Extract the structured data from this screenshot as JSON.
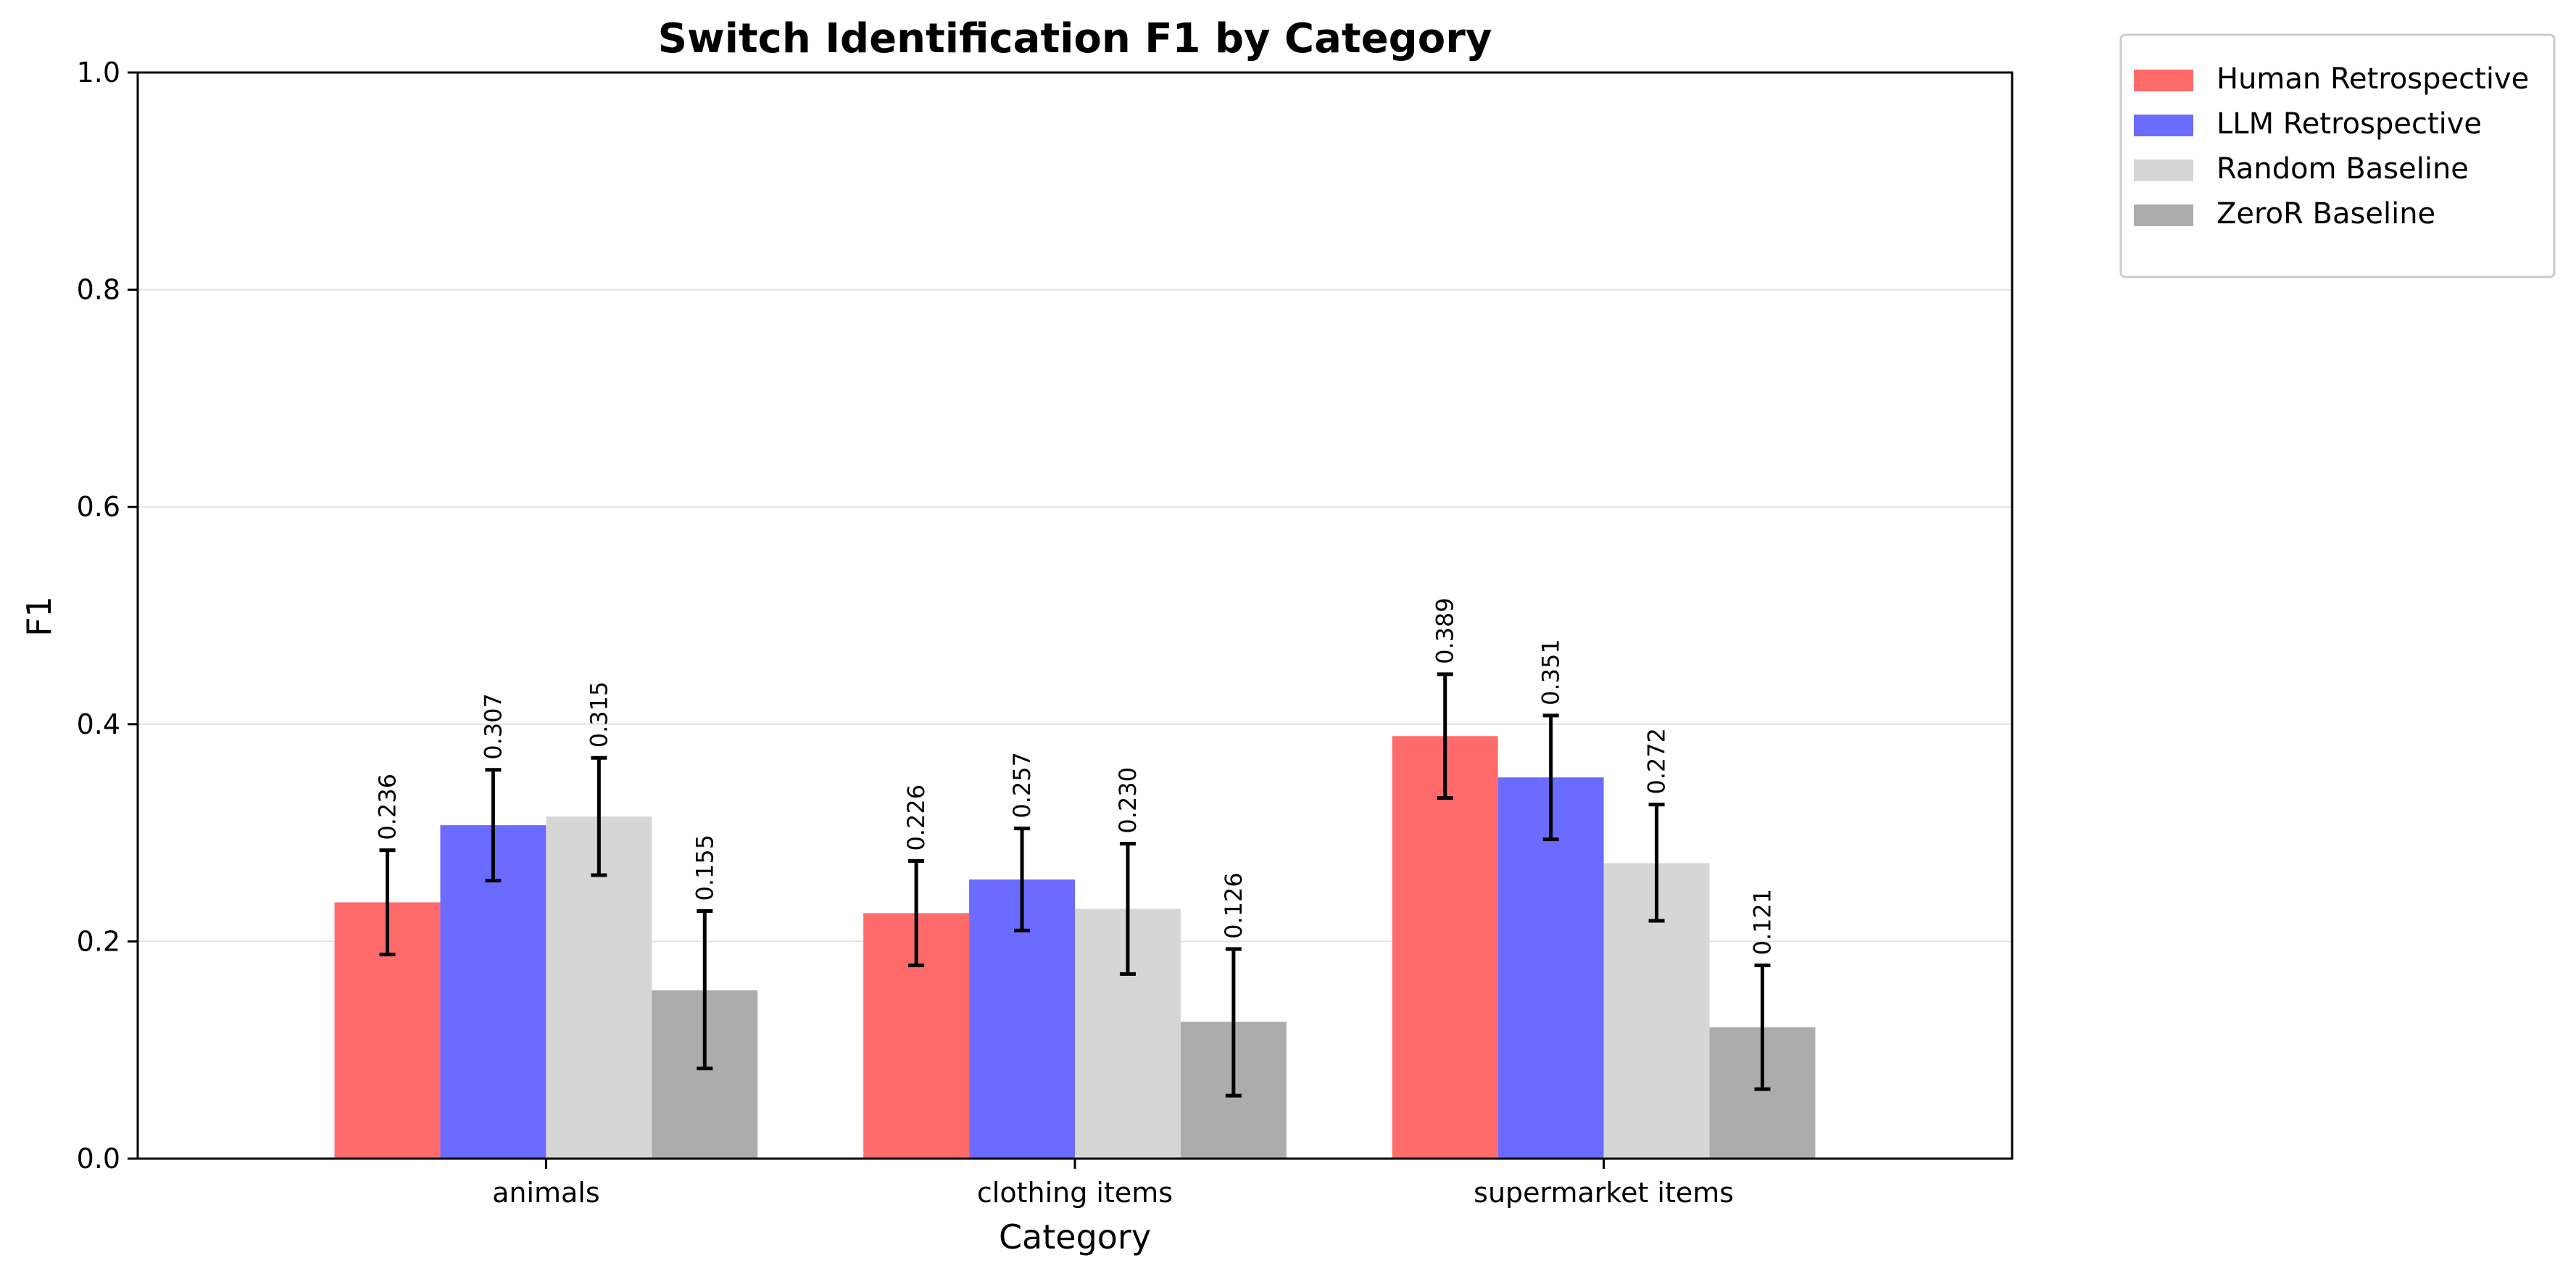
{
  "chart_data": {
    "type": "bar",
    "title": "Switch Identification F1 by Category",
    "xlabel": "Category",
    "ylabel": "F1",
    "ylim": [
      0,
      1.0
    ],
    "yticks": [
      "0.0",
      "0.2",
      "0.4",
      "0.6",
      "0.8",
      "1.0"
    ],
    "grid": "horizontal",
    "legend_position": "outside-top-right",
    "categories": [
      "animals",
      "clothing items",
      "supermarket items"
    ],
    "series": [
      {
        "name": "Human Retrospective",
        "color": "#ff6b6b",
        "values": [
          0.236,
          0.226,
          0.389
        ],
        "labels": [
          "0.236",
          "0.226",
          "0.389"
        ],
        "err_low": [
          0.188,
          0.178,
          0.332
        ],
        "err_high": [
          0.284,
          0.274,
          0.446
        ]
      },
      {
        "name": "LLM Retrospective",
        "color": "#6b6bff",
        "values": [
          0.307,
          0.257,
          0.351
        ],
        "labels": [
          "0.307",
          "0.257",
          "0.351"
        ],
        "err_low": [
          0.256,
          0.21,
          0.294
        ],
        "err_high": [
          0.358,
          0.304,
          0.408
        ]
      },
      {
        "name": "Random Baseline",
        "color": "#d6d6d6",
        "values": [
          0.315,
          0.23,
          0.272
        ],
        "labels": [
          "0.315",
          "0.230",
          "0.272"
        ],
        "err_low": [
          0.261,
          0.17,
          0.219
        ],
        "err_high": [
          0.369,
          0.29,
          0.326
        ]
      },
      {
        "name": "ZeroR Baseline",
        "color": "#acacac",
        "values": [
          0.155,
          0.126,
          0.121
        ],
        "labels": [
          "0.155",
          "0.126",
          "0.121"
        ],
        "err_low": [
          0.083,
          0.058,
          0.064
        ],
        "err_high": [
          0.228,
          0.193,
          0.178
        ]
      }
    ]
  }
}
